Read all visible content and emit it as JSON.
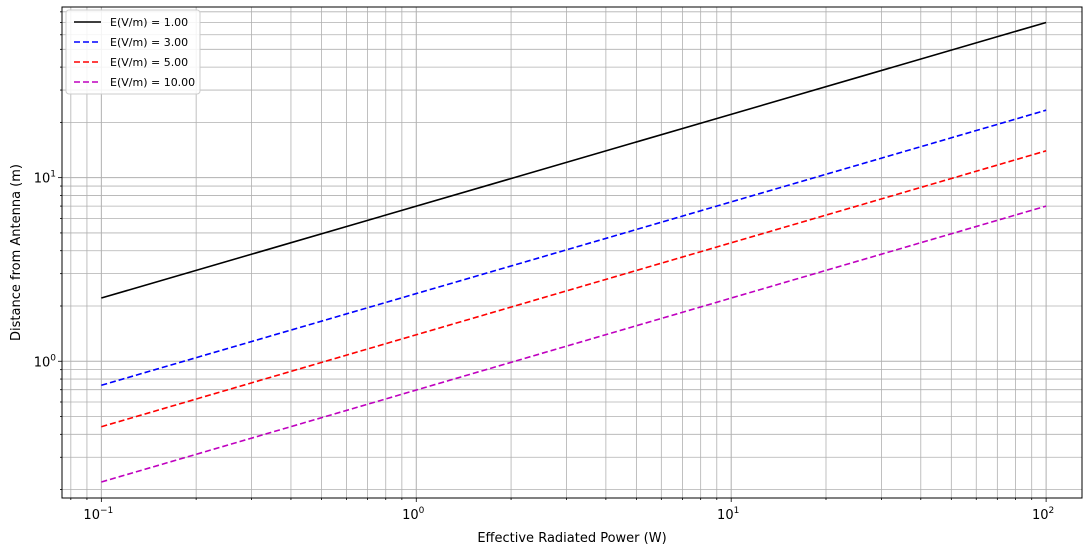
{
  "chart_data": {
    "type": "line",
    "title": "",
    "xlabel": "Effective Radiated Power  (W)",
    "ylabel": "Distance from Antenna (m)",
    "xscale": "log",
    "yscale": "log",
    "xlim": [
      0.075,
      130
    ],
    "ylim": [
      0.18,
      85
    ],
    "grid": true,
    "grid_minor": true,
    "legend_position": "top-left",
    "x_ticks": [
      {
        "base": "10",
        "exp": "−1"
      },
      {
        "base": "10",
        "exp": "0"
      },
      {
        "base": "10",
        "exp": "1"
      },
      {
        "base": "10",
        "exp": "2"
      }
    ],
    "y_ticks": [
      {
        "base": "10",
        "exp": "0"
      },
      {
        "base": "10",
        "exp": "1"
      }
    ],
    "x": [
      0.1,
      100
    ],
    "series": [
      {
        "name": "E(V/m) = 1.00",
        "field": 1.0,
        "color": "#000000",
        "dashed": false,
        "values": [
          2.21,
          70.0
        ]
      },
      {
        "name": "E(V/m) = 3.00",
        "field": 3.0,
        "color": "#0000ff",
        "dashed": true,
        "values": [
          0.74,
          23.3
        ]
      },
      {
        "name": "E(V/m) = 5.00",
        "field": 5.0,
        "color": "#ff0000",
        "dashed": true,
        "values": [
          0.44,
          14.0
        ]
      },
      {
        "name": "E(V/m) = 10.00",
        "field": 10.0,
        "color": "#bf00bf",
        "dashed": true,
        "values": [
          0.22,
          7.0
        ]
      }
    ]
  }
}
